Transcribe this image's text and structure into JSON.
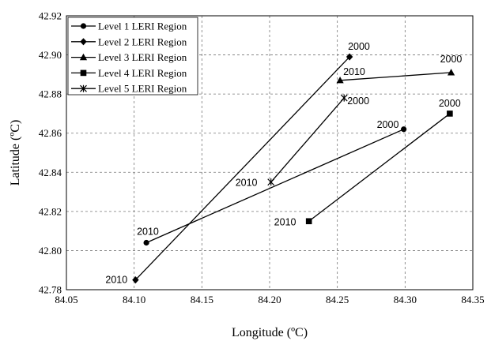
{
  "chart_data": {
    "type": "line",
    "xlabel": "Longitude (ºC)",
    "ylabel": "Latitude (ºC)",
    "xlim": [
      84.05,
      84.35
    ],
    "ylim": [
      42.78,
      42.92
    ],
    "xticks": [
      "84.05",
      "84.10",
      "84.15",
      "84.20",
      "84.25",
      "84.30",
      "84.35"
    ],
    "yticks": [
      "42.78",
      "42.80",
      "42.82",
      "42.84",
      "42.86",
      "42.88",
      "42.90",
      "42.92"
    ],
    "grid": true,
    "legend_position": "top-left",
    "series": [
      {
        "name": "Level 1 LERI Region",
        "marker": "circle",
        "points": [
          {
            "x": 84.109,
            "y": 42.804,
            "label": "2010"
          },
          {
            "x": 84.299,
            "y": 42.862,
            "label": "2000"
          }
        ]
      },
      {
        "name": "Level 2 LERI Region",
        "marker": "diamond",
        "points": [
          {
            "x": 84.101,
            "y": 42.785,
            "label": "2010"
          },
          {
            "x": 84.259,
            "y": 42.899,
            "label": "2000"
          }
        ]
      },
      {
        "name": "Level 3 LERI Region",
        "marker": "triangle",
        "points": [
          {
            "x": 84.252,
            "y": 42.887,
            "label": "2010"
          },
          {
            "x": 84.334,
            "y": 42.891,
            "label": "2000"
          }
        ]
      },
      {
        "name": "Level 4 LERI Region",
        "marker": "square",
        "points": [
          {
            "x": 84.229,
            "y": 42.815,
            "label": "2010"
          },
          {
            "x": 84.333,
            "y": 42.87,
            "label": "2000"
          }
        ]
      },
      {
        "name": "Level 5 LERI Region",
        "marker": "star",
        "points": [
          {
            "x": 84.201,
            "y": 42.835,
            "label": "2010"
          },
          {
            "x": 84.255,
            "y": 42.878,
            "label": "2000"
          }
        ]
      }
    ]
  }
}
